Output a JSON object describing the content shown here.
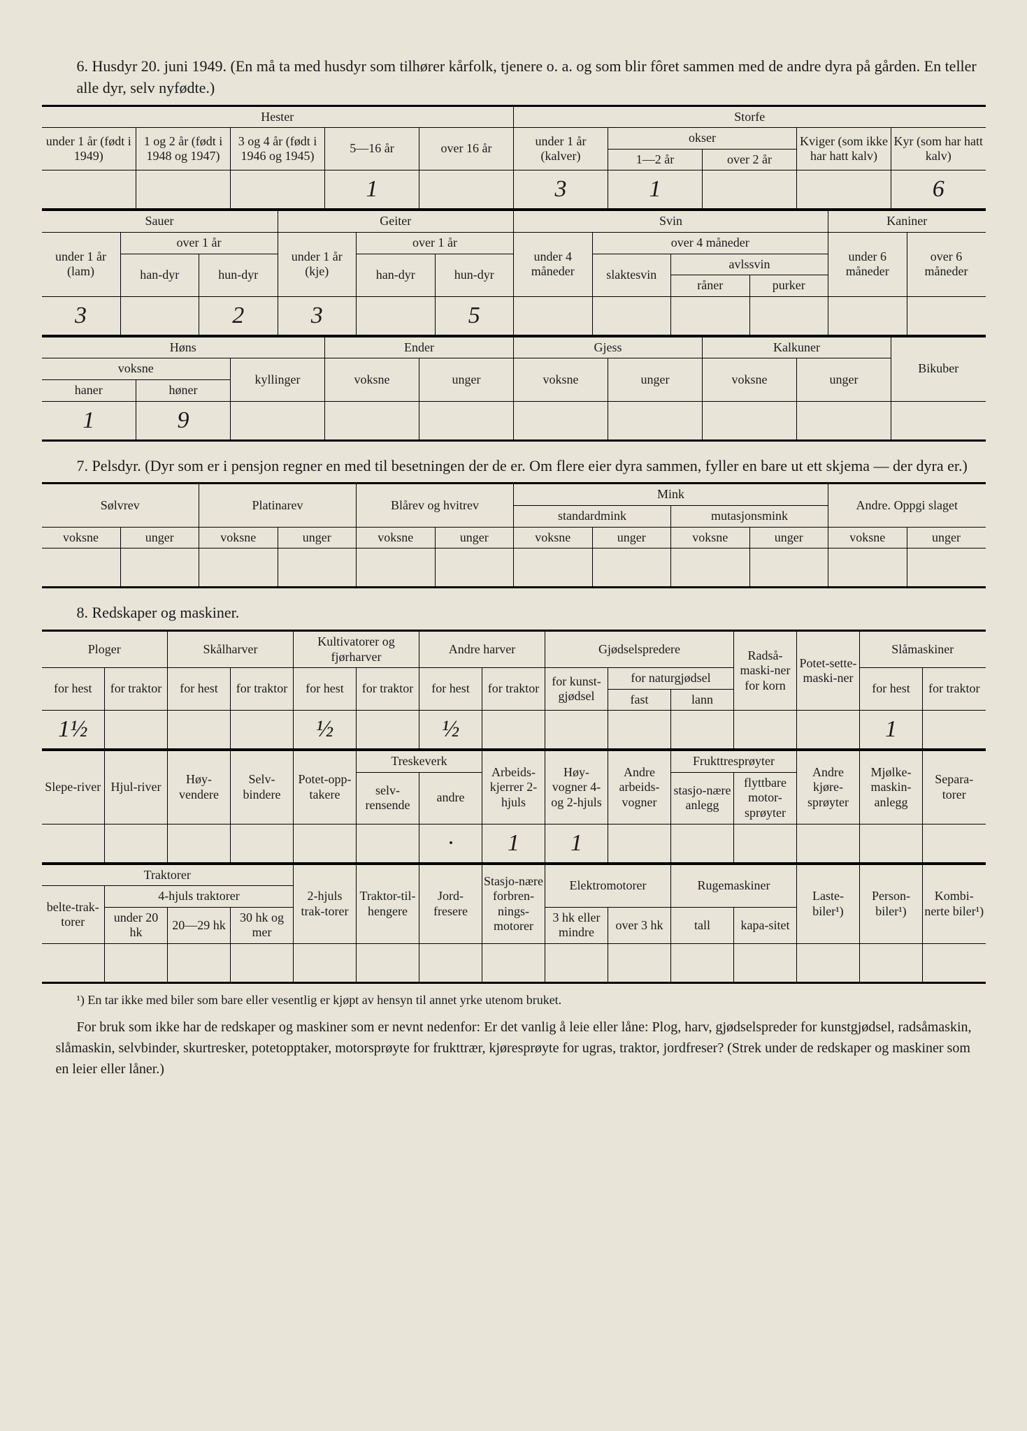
{
  "section6": {
    "title": "6. Husdyr 20. juni 1949. (En må ta med husdyr som tilhører kårfolk, tjenere o. a. og som blir fôret sammen med de andre dyra på gården. En teller alle dyr, selv nyfødte.)",
    "hester_label": "Hester",
    "storfe_label": "Storfe",
    "h1": "under 1 år (født i 1949)",
    "h2": "1 og 2 år (født i 1948 og 1947)",
    "h3": "3 og 4 år (født i 1946 og 1945)",
    "h4": "5—16 år",
    "h5": "over 16 år",
    "s1": "under 1 år (kalver)",
    "s_okser": "okser",
    "s2": "1—2 år",
    "s3": "over 2 år",
    "s4": "Kviger (som ikke har hatt kalv)",
    "s5": "Kyr (som har hatt kalv)",
    "val_h4": "1",
    "val_s1": "3",
    "val_s2": "1",
    "val_s5": "6",
    "sauer": "Sauer",
    "geiter": "Geiter",
    "svin": "Svin",
    "kaniner": "Kaniner",
    "under1_lam": "under 1 år (lam)",
    "over1": "over 1 år",
    "handyr": "han-dyr",
    "hundyr": "hun-dyr",
    "under1_kje": "under 1 år (kje)",
    "under4m": "under 4 måneder",
    "over4m": "over 4 måneder",
    "slaktesvin": "slaktesvin",
    "avlssvin": "avlssvin",
    "raner": "råner",
    "purker": "purker",
    "under6m": "under 6 måneder",
    "over6m": "over 6 måneder",
    "val_sau_u1": "3",
    "val_sau_hun": "2",
    "val_geit_u1": "3",
    "val_geit_hun": "5",
    "hons": "Høns",
    "ender": "Ender",
    "gjess": "Gjess",
    "kalkuner": "Kalkuner",
    "bikuber": "Bikuber",
    "voksne": "voksne",
    "unger": "unger",
    "kyllinger": "kyllinger",
    "haner": "haner",
    "honer": "høner",
    "val_haner": "1",
    "val_honer": "9"
  },
  "section7": {
    "title": "7. Pelsdyr. (Dyr som er i pensjon regner en med til besetningen der de er. Om flere eier dyra sammen, fyller en bare ut ett skjema — der dyra er.)",
    "solvrev": "Sølvrev",
    "platinarev": "Platinarev",
    "blarev": "Blårev og hvitrev",
    "mink": "Mink",
    "standardmink": "standardmink",
    "mutasjonsmink": "mutasjonsmink",
    "andre": "Andre. Oppgi slaget",
    "voksne": "voksne",
    "unger": "unger"
  },
  "section8": {
    "title": "8. Redskaper og maskiner.",
    "ploger": "Ploger",
    "skalharver": "Skålharver",
    "kultivatorer": "Kultivatorer og fjørharver",
    "andreharver": "Andre harver",
    "gjodsel": "Gjødselspredere",
    "radsa": "Radså-maski-ner for korn",
    "potet": "Potet-sette-maski-ner",
    "slamaskiner": "Slåmaskiner",
    "forhest": "for hest",
    "fortraktor": "for traktor",
    "forkunst": "for kunst-gjødsel",
    "fornatur": "for naturgjødsel",
    "fast": "fast",
    "lann": "lann",
    "val_plog_hest": "1½",
    "val_kult_hest": "½",
    "val_andre_hest": "½",
    "val_sla_hest": "1",
    "sleperiver": "Slepe-river",
    "hjulriver": "Hjul-river",
    "hoyvendere": "Høy-vendere",
    "selvbindere": "Selv-bindere",
    "potetopp": "Potet-opp-takere",
    "treskeverk": "Treskeverk",
    "selvrensende": "selv-rensende",
    "andre": "andre",
    "arbeids": "Arbeids-kjerrer 2-hjuls",
    "hoyvogner": "Høy-vogner 4- og 2-hjuls",
    "andrearbeids": "Andre arbeids-vogner",
    "frukt": "Frukttresprøyter",
    "stasjo": "stasjo-nære anlegg",
    "flytt": "flyttbare motor-sprøyter",
    "andrekjore": "Andre kjøre-sprøyter",
    "mjolke": "Mjølke-maskin-anlegg",
    "separ": "Separa-torer",
    "val_arbeids": "1",
    "val_hoyvogn": "1",
    "val_treskeverk_andre_dot": "·",
    "traktorer": "Traktorer",
    "belte": "belte-trak-torer",
    "fjhjuls": "4-hjuls traktorer",
    "under20": "under 20 hk",
    "hk2029": "20—29 hk",
    "hk30": "30 hk og mer",
    "tohjuls": "2-hjuls trak-torer",
    "traktortil": "Traktor-til-hengere",
    "jordfresere": "Jord-fresere",
    "stasjonare": "Stasjo-nære forbren-nings-motorer",
    "elektro": "Elektromotorer",
    "hk3eller": "3 hk eller mindre",
    "over3hk": "over 3 hk",
    "rugemaskiner": "Rugemaskiner",
    "tall": "tall",
    "kapasitet": "kapa-sitet",
    "laste": "Laste-biler¹)",
    "person": "Person-biler¹)",
    "kombi": "Kombi-nerte biler¹)"
  },
  "footnote": "¹) En tar ikke med biler som bare eller vesentlig er kjøpt av hensyn til annet yrke utenom bruket.",
  "bodytext": "For bruk som ikke har de redskaper og maskiner som er nevnt nedenfor: Er det vanlig å leie eller låne: Plog, harv, gjødselspreder for kunstgjødsel, radsåmaskin, slåmaskin, selvbinder, skurtresker, potetopptaker, motorsprøyte for frukttrær, kjøresprøyte for ugras, traktor, jordfreser? (Strek under de redskaper og maskiner som en leier eller låner.)"
}
